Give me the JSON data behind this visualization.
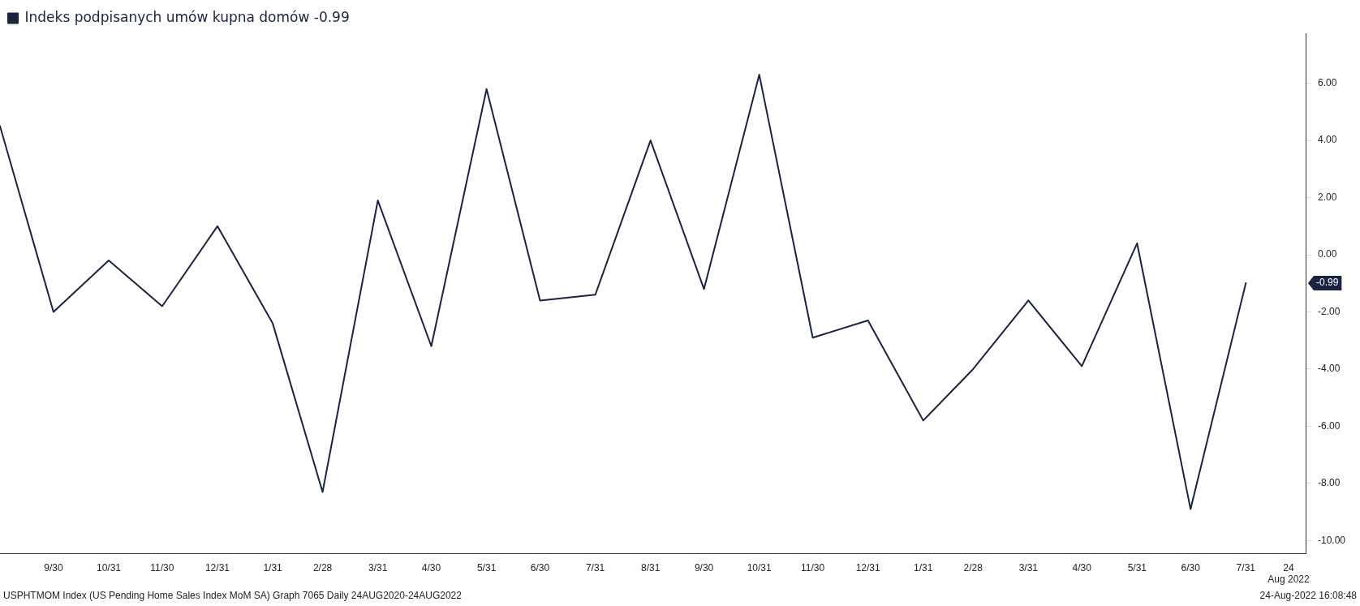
{
  "chart_data": {
    "type": "line",
    "x": [
      "2020-08-31",
      "2020-09-30",
      "2020-10-31",
      "2020-11-30",
      "2020-12-31",
      "2021-01-31",
      "2021-02-28",
      "2021-03-31",
      "2021-04-30",
      "2021-05-31",
      "2021-06-30",
      "2021-07-31",
      "2021-08-31",
      "2021-09-30",
      "2021-10-31",
      "2021-11-30",
      "2021-12-31",
      "2022-01-31",
      "2022-02-28",
      "2022-03-31",
      "2022-04-30",
      "2022-05-31",
      "2022-06-30",
      "2022-07-31"
    ],
    "series": [
      {
        "name": "Indeks podpisanych umów kupna domów -0.99",
        "color": "#1a2340",
        "values": [
          4.5,
          -2.0,
          -0.2,
          -1.8,
          1.0,
          -2.4,
          -8.3,
          1.9,
          -3.2,
          5.8,
          -1.6,
          -1.4,
          4.0,
          -1.2,
          6.3,
          -2.9,
          -2.3,
          -5.8,
          -4.0,
          -1.6,
          -3.9,
          0.4,
          -8.9,
          -0.99
        ]
      }
    ],
    "xlim": [
      "2020-08-31",
      "2022-09-03"
    ],
    "xticks": [
      {
        "value": "2020-09-30",
        "label": "9/30"
      },
      {
        "value": "2020-10-31",
        "label": "10/31"
      },
      {
        "value": "2020-11-30",
        "label": "11/30"
      },
      {
        "value": "2020-12-31",
        "label": "12/31"
      },
      {
        "value": "2021-01-31",
        "label": "1/31"
      },
      {
        "value": "2021-02-28",
        "label": "2/28"
      },
      {
        "value": "2021-03-31",
        "label": "3/31"
      },
      {
        "value": "2021-04-30",
        "label": "4/30"
      },
      {
        "value": "2021-05-31",
        "label": "5/31"
      },
      {
        "value": "2021-06-30",
        "label": "6/30"
      },
      {
        "value": "2021-07-31",
        "label": "7/31"
      },
      {
        "value": "2021-08-31",
        "label": "8/31"
      },
      {
        "value": "2021-09-30",
        "label": "9/30"
      },
      {
        "value": "2021-10-31",
        "label": "10/31"
      },
      {
        "value": "2021-11-30",
        "label": "11/30"
      },
      {
        "value": "2021-12-31",
        "label": "12/31"
      },
      {
        "value": "2022-01-31",
        "label": "1/31"
      },
      {
        "value": "2022-02-28",
        "label": "2/28"
      },
      {
        "value": "2022-03-31",
        "label": "3/31"
      },
      {
        "value": "2022-04-30",
        "label": "4/30"
      },
      {
        "value": "2022-05-31",
        "label": "5/31"
      },
      {
        "value": "2022-06-30",
        "label": "6/30"
      },
      {
        "value": "2022-07-31",
        "label": "7/31"
      },
      {
        "value": "2022-08-24",
        "label": "24\nAug 2022"
      }
    ],
    "ylim": [
      -10.45,
      7.75
    ],
    "yticks": [
      {
        "value": -10,
        "label": "-10.00"
      },
      {
        "value": -8,
        "label": "-8.00"
      },
      {
        "value": -6,
        "label": "-6.00"
      },
      {
        "value": -4,
        "label": "-4.00"
      },
      {
        "value": -2,
        "label": "-2.00"
      },
      {
        "value": 0,
        "label": "0.00"
      },
      {
        "value": 2,
        "label": "2.00"
      },
      {
        "value": 4,
        "label": "4.00"
      },
      {
        "value": 6,
        "label": "6.00"
      }
    ],
    "grid": false,
    "legend": "top left",
    "marker": "none",
    "line_style": "solid",
    "annotations": [
      "-0.99",
      "USPHTMOM Index (US Pending Home Sales Index MoM SA) Graph 7065  Daily 24AUG2020-24AUG2022",
      "24-Aug-2022 16:08:48"
    ]
  }
}
